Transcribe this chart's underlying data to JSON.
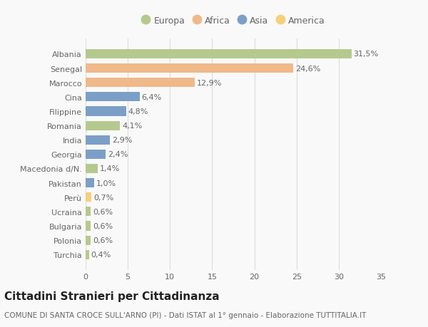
{
  "categories": [
    "Albania",
    "Senegal",
    "Marocco",
    "Cina",
    "Filippine",
    "Romania",
    "India",
    "Georgia",
    "Macedonia d/N.",
    "Pakistan",
    "Perù",
    "Ucraina",
    "Bulgaria",
    "Polonia",
    "Turchia"
  ],
  "values": [
    31.5,
    24.6,
    12.9,
    6.4,
    4.8,
    4.1,
    2.9,
    2.4,
    1.4,
    1.0,
    0.7,
    0.6,
    0.6,
    0.6,
    0.4
  ],
  "labels": [
    "31,5%",
    "24,6%",
    "12,9%",
    "6,4%",
    "4,8%",
    "4,1%",
    "2,9%",
    "2,4%",
    "1,4%",
    "1,0%",
    "0,7%",
    "0,6%",
    "0,6%",
    "0,6%",
    "0,4%"
  ],
  "continents": [
    "Europa",
    "Africa",
    "Africa",
    "Asia",
    "Asia",
    "Europa",
    "Asia",
    "Asia",
    "Europa",
    "Asia",
    "America",
    "Europa",
    "Europa",
    "Europa",
    "Europa"
  ],
  "colors": {
    "Europa": "#b5c98e",
    "Africa": "#f0b98a",
    "Asia": "#7b9fc7",
    "America": "#f5d07a"
  },
  "legend_order": [
    "Europa",
    "Africa",
    "Asia",
    "America"
  ],
  "title": "Cittadini Stranieri per Cittadinanza",
  "subtitle": "COMUNE DI SANTA CROCE SULL'ARNO (PI) - Dati ISTAT al 1° gennaio - Elaborazione TUTTITALIA.IT",
  "xlim": [
    0,
    35
  ],
  "xticks": [
    0,
    5,
    10,
    15,
    20,
    25,
    30,
    35
  ],
  "background_color": "#f9f9f9",
  "grid_color": "#dddddd",
  "bar_height": 0.65,
  "title_fontsize": 11,
  "subtitle_fontsize": 7.5,
  "label_fontsize": 8,
  "tick_fontsize": 8,
  "legend_fontsize": 9
}
